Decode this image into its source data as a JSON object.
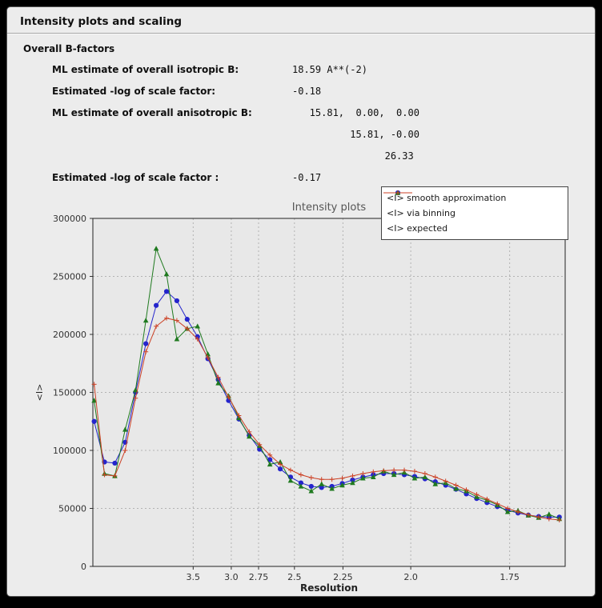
{
  "window": {
    "title": "Intensity plots and scaling"
  },
  "bfactors": {
    "section_title": "Overall B-factors",
    "rows": [
      {
        "label": "ML estimate of overall isotropic B:",
        "value": "18.59 A**(-2)"
      },
      {
        "label": "Estimated -log of scale factor:",
        "value": "-0.18"
      },
      {
        "label": "ML estimate of overall anisotropic B:",
        "value": "   15.81,  0.00,  0.00"
      },
      {
        "label": "",
        "value": "          15.81, -0.00"
      },
      {
        "label": "",
        "value": "                26.33"
      },
      {
        "label": "Estimated -log of scale factor :",
        "value": "-0.17"
      }
    ]
  },
  "chart_data": {
    "type": "line",
    "title": "Intensity plots",
    "xlabel": "Resolution",
    "ylabel": "<I>",
    "plot_bg": "#e8e8e8",
    "grid": true,
    "grid_color": "#b3b3b3",
    "legend_position": "top-right",
    "ylim": [
      0,
      300000
    ],
    "yticks": [
      0,
      50000,
      100000,
      150000,
      200000,
      250000,
      300000
    ],
    "x_axis": {
      "note": "x is 1/d^2 (resolution in Angstrom decreasing to the right)",
      "min": 0.004,
      "max": 0.3695,
      "ticks": [
        {
          "label": "3.5",
          "s": 0.08163
        },
        {
          "label": "3.0",
          "s": 0.11111
        },
        {
          "label": "2.75",
          "s": 0.13223
        },
        {
          "label": "2.5",
          "s": 0.16
        },
        {
          "label": "2.25",
          "s": 0.19753
        },
        {
          "label": "2.0",
          "s": 0.25
        },
        {
          "label": "1.75",
          "s": 0.32653
        }
      ]
    },
    "x": [
      0.005,
      0.013,
      0.021,
      0.029,
      0.037,
      0.045,
      0.053,
      0.061,
      0.069,
      0.077,
      0.085,
      0.093,
      0.101,
      0.109,
      0.117,
      0.125,
      0.133,
      0.141,
      0.149,
      0.157,
      0.165,
      0.173,
      0.181,
      0.189,
      0.197,
      0.205,
      0.213,
      0.221,
      0.229,
      0.237,
      0.245,
      0.253,
      0.261,
      0.269,
      0.277,
      0.285,
      0.293,
      0.301,
      0.309,
      0.317,
      0.325,
      0.333,
      0.341,
      0.349,
      0.357,
      0.365
    ],
    "series": [
      {
        "name": "<I> smooth approximation",
        "color": "#2424cc",
        "marker": "circle",
        "values": [
          125000,
          90000,
          89000,
          107000,
          150000,
          192000,
          225000,
          237000,
          229000,
          213000,
          198000,
          179000,
          161000,
          143000,
          127000,
          113000,
          101000,
          92000,
          84000,
          77000,
          72000,
          69000,
          68000,
          69000,
          71500,
          74500,
          77000,
          79000,
          80000,
          80000,
          79000,
          77500,
          75500,
          73000,
          70000,
          66500,
          62500,
          58500,
          55000,
          51500,
          48500,
          46000,
          44200,
          43000,
          42500,
          42500
        ]
      },
      {
        "name": "<I> via binning",
        "color": "#1f7a1f",
        "marker": "triangle",
        "values": [
          143000,
          80000,
          78000,
          118000,
          152000,
          212000,
          274000,
          252000,
          196000,
          205000,
          207000,
          183000,
          158000,
          147000,
          128000,
          112000,
          104000,
          88000,
          90000,
          74000,
          69000,
          65000,
          71000,
          67000,
          70000,
          72000,
          76000,
          77000,
          82000,
          79000,
          81000,
          76000,
          77000,
          71000,
          72000,
          67000,
          65000,
          60000,
          57000,
          53000,
          47000,
          48000,
          44000,
          42000,
          45000,
          41000
        ]
      },
      {
        "name": "<I> expected",
        "color": "#cc4125",
        "marker": "plus",
        "values": [
          157000,
          79000,
          78000,
          100000,
          145000,
          185000,
          207000,
          214000,
          212000,
          205000,
          196000,
          180000,
          163000,
          146000,
          130000,
          116000,
          105000,
          96000,
          88000,
          83000,
          79000,
          76500,
          75000,
          75000,
          76000,
          78000,
          80000,
          81500,
          82500,
          83000,
          83000,
          82000,
          80000,
          77000,
          73500,
          70000,
          66000,
          62000,
          58000,
          54000,
          50000,
          47000,
          44500,
          42500,
          41000,
          40000
        ]
      }
    ]
  }
}
